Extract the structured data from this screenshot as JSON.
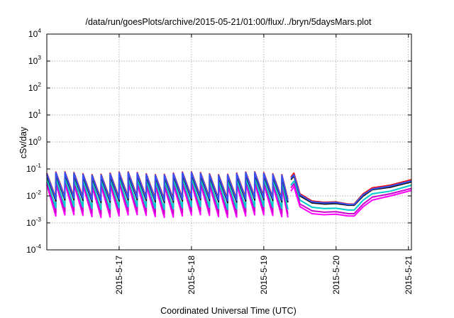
{
  "chart_data": {
    "type": "line",
    "title": "/data/run/goesPlots/archive/2015-05-21/01:00/flux/../bryn/5daysMars.plot",
    "xlabel": "Coordinated Universal Time (UTC)",
    "ylabel": "cSv/day",
    "y_scale": "log",
    "ylim": [
      0.0001,
      10000
    ],
    "xlim": [
      "2015-05-16T00:00",
      "2015-05-21T01:00"
    ],
    "grid": true,
    "y_ticks": [
      {
        "base": "10",
        "exp": "-4"
      },
      {
        "base": "10",
        "exp": "-3"
      },
      {
        "base": "10",
        "exp": "-2"
      },
      {
        "base": "10",
        "exp": "-1"
      },
      {
        "base": "10",
        "exp": "0"
      },
      {
        "base": "10",
        "exp": "1"
      },
      {
        "base": "10",
        "exp": "2"
      },
      {
        "base": "10",
        "exp": "3"
      },
      {
        "base": "10",
        "exp": "4"
      }
    ],
    "x_ticks": [
      "2015-5-17",
      "2015-5-18",
      "2015-5-19",
      "2015-5-20",
      "2015-5-21"
    ],
    "pulse_period_hours": 3,
    "series_colors": [
      "#ff00ff",
      "#cc00cc",
      "#00cccc",
      "#3355ff",
      "#111111",
      "#ee1111"
    ],
    "series": [
      {
        "color": "#ee1111",
        "x": [
          "2015-05-19T09:00",
          "2015-05-19T10:00",
          "2015-05-19T12:00",
          "2015-05-19T16:00",
          "2015-05-19T20:00",
          "2015-05-20T00:00",
          "2015-05-20T04:00",
          "2015-05-20T06:00",
          "2015-05-20T09:00",
          "2015-05-20T12:00",
          "2015-05-20T18:00",
          "2015-05-21T01:00"
        ],
        "y": [
          0.05,
          0.07,
          0.012,
          0.0065,
          0.0058,
          0.006,
          0.005,
          0.005,
          0.012,
          0.02,
          0.025,
          0.04
        ]
      },
      {
        "color": "#111111",
        "x": [
          "2015-05-19T09:00",
          "2015-05-19T10:00",
          "2015-05-19T12:00",
          "2015-05-19T16:00",
          "2015-05-19T20:00",
          "2015-05-20T00:00",
          "2015-05-20T04:00",
          "2015-05-20T06:00",
          "2015-05-20T09:00",
          "2015-05-20T12:00",
          "2015-05-20T18:00",
          "2015-05-21T01:00"
        ],
        "y": [
          0.04,
          0.055,
          0.01,
          0.0055,
          0.005,
          0.0052,
          0.0045,
          0.0045,
          0.01,
          0.017,
          0.021,
          0.033
        ]
      },
      {
        "color": "#3355ff",
        "x": [
          "2015-05-19T09:00",
          "2015-05-19T10:00",
          "2015-05-19T12:00",
          "2015-05-19T16:00",
          "2015-05-19T20:00",
          "2015-05-20T00:00",
          "2015-05-20T04:00",
          "2015-05-20T06:00",
          "2015-05-20T09:00",
          "2015-05-20T12:00",
          "2015-05-20T18:00",
          "2015-05-21T01:00"
        ],
        "y": [
          0.045,
          0.06,
          0.011,
          0.006,
          0.0055,
          0.0057,
          0.0048,
          0.0048,
          0.011,
          0.018,
          0.023,
          0.036
        ]
      },
      {
        "color": "#00cccc",
        "x": [
          "2015-05-19T09:00",
          "2015-05-19T10:00",
          "2015-05-19T12:00",
          "2015-05-19T16:00",
          "2015-05-19T20:00",
          "2015-05-20T00:00",
          "2015-05-20T04:00",
          "2015-05-20T06:00",
          "2015-05-20T09:00",
          "2015-05-20T12:00",
          "2015-05-20T18:00",
          "2015-05-21T01:00"
        ],
        "y": [
          0.025,
          0.035,
          0.007,
          0.0038,
          0.0034,
          0.0035,
          0.003,
          0.003,
          0.007,
          0.012,
          0.015,
          0.025
        ]
      },
      {
        "color": "#cc00cc",
        "x": [
          "2015-05-19T09:00",
          "2015-05-19T10:00",
          "2015-05-19T12:00",
          "2015-05-19T16:00",
          "2015-05-19T20:00",
          "2015-05-20T00:00",
          "2015-05-20T04:00",
          "2015-05-20T06:00",
          "2015-05-20T09:00",
          "2015-05-20T12:00",
          "2015-05-20T18:00",
          "2015-05-21T01:00"
        ],
        "y": [
          0.02,
          0.028,
          0.005,
          0.0028,
          0.0025,
          0.0026,
          0.0022,
          0.0022,
          0.005,
          0.009,
          0.012,
          0.019
        ]
      },
      {
        "color": "#ff00ff",
        "x": [
          "2015-05-19T09:00",
          "2015-05-19T10:00",
          "2015-05-19T12:00",
          "2015-05-19T16:00",
          "2015-05-19T20:00",
          "2015-05-20T00:00",
          "2015-05-20T04:00",
          "2015-05-20T06:00",
          "2015-05-20T09:00",
          "2015-05-20T12:00",
          "2015-05-20T18:00",
          "2015-05-21T01:00"
        ],
        "y": [
          0.015,
          0.022,
          0.004,
          0.0022,
          0.002,
          0.0021,
          0.0018,
          0.0018,
          0.004,
          0.007,
          0.01,
          0.016
        ]
      }
    ],
    "pulse_levels": [
      {
        "color": "#ff00ff",
        "peak": 0.026,
        "trough": 0.0018
      },
      {
        "color": "#cc00cc",
        "peak": 0.032,
        "trough": 0.0024
      },
      {
        "color": "#00cccc",
        "peak": 0.042,
        "trough": 0.0036
      },
      {
        "color": "#111111",
        "peak": 0.058,
        "trough": 0.0065
      },
      {
        "color": "#ee1111",
        "peak": 0.07,
        "trough": 0.0085
      },
      {
        "color": "#3355ff",
        "peak": 0.066,
        "trough": 0.0075
      }
    ],
    "pulse_span": [
      "2015-05-16T00:00",
      "2015-05-19T08:00"
    ]
  }
}
